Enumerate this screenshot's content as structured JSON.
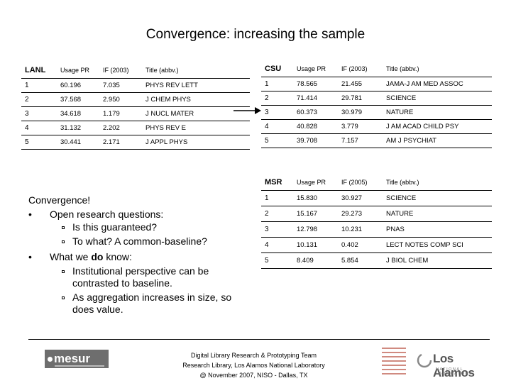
{
  "title": "Convergence: increasing the sample",
  "lanl": {
    "inst": "LANL",
    "headers": [
      "Usage PR",
      "IF (2003)",
      "Title (abbv.)"
    ],
    "rows": [
      {
        "rank": "1",
        "usage": "60.196",
        "if": "7.035",
        "title": "PHYS REV LETT"
      },
      {
        "rank": "2",
        "usage": "37.568",
        "if": "2.950",
        "title": "J CHEM PHYS"
      },
      {
        "rank": "3",
        "usage": "34.618",
        "if": "1.179",
        "title": "J NUCL MATER"
      },
      {
        "rank": "4",
        "usage": "31.132",
        "if": "2.202",
        "title": "PHYS REV E"
      },
      {
        "rank": "5",
        "usage": "30.441",
        "if": "2.171",
        "title": "J APPL PHYS"
      }
    ]
  },
  "csu": {
    "inst": "CSU",
    "headers": [
      "Usage PR",
      "IF (2003)",
      "Title (abbv.)"
    ],
    "rows": [
      {
        "rank": "1",
        "usage": "78.565",
        "if": "21.455",
        "title": "JAMA-J AM MED ASSOC"
      },
      {
        "rank": "2",
        "usage": "71.414",
        "if": "29.781",
        "title": "SCIENCE"
      },
      {
        "rank": "3",
        "usage": "60.373",
        "if": "30.979",
        "title": "NATURE"
      },
      {
        "rank": "4",
        "usage": "40.828",
        "if": "3.779",
        "title": "J AM ACAD CHILD PSY"
      },
      {
        "rank": "5",
        "usage": "39.708",
        "if": "7.157",
        "title": "AM J PSYCHIAT"
      }
    ]
  },
  "msr": {
    "inst": "MSR",
    "headers": [
      "Usage PR",
      "IF (2005)",
      "Title (abbv.)"
    ],
    "rows": [
      {
        "rank": "1",
        "usage": "15.830",
        "if": "30.927",
        "title": "SCIENCE"
      },
      {
        "rank": "2",
        "usage": "15.167",
        "if": "29.273",
        "title": "NATURE"
      },
      {
        "rank": "3",
        "usage": "12.798",
        "if": "10.231",
        "title": "PNAS"
      },
      {
        "rank": "4",
        "usage": "10.131",
        "if": "0.402",
        "title": "LECT NOTES COMP SCI"
      },
      {
        "rank": "5",
        "usage": "8.409",
        "if": "5.854",
        "title": "J BIOL CHEM"
      }
    ]
  },
  "bullets": {
    "heading": "Convergence!",
    "b1": "Open research questions:",
    "b1_items": [
      "Is this guaranteed?",
      "To what? A common-baseline?"
    ],
    "b2_pre": "What we ",
    "b2_bold": "do",
    "b2_post": " know:",
    "b2_items": [
      "Institutional perspective can be contrasted to baseline.",
      "As aggregation increases in size, so does value."
    ]
  },
  "footer": {
    "line1": "Digital Library Research & Prototyping Team",
    "line2": "Research Library, Los Alamos National Laboratory",
    "line3": "@ November 2007, NISO - Dallas, TX"
  },
  "logos": {
    "mesur": "mesur",
    "lanl_name": "Los Alamos",
    "lanl_sub": "NATIONAL LABORATORY"
  }
}
